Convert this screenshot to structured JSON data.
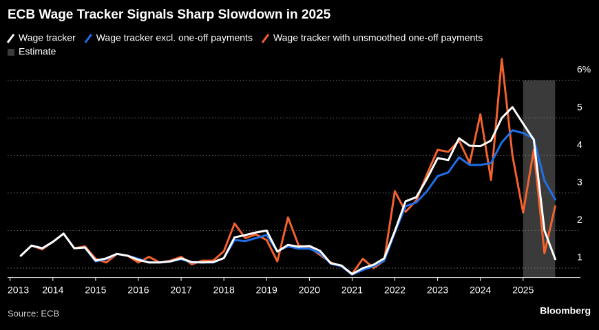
{
  "chart_data": {
    "type": "line",
    "title": "ECB Wage Tracker Signals Sharp Slowdown in 2025",
    "source": "Source: ECB",
    "brand": "Bloomberg",
    "x": [
      2013.25,
      2013.5,
      2013.75,
      2014,
      2014.25,
      2014.5,
      2014.75,
      2015,
      2015.25,
      2015.5,
      2015.75,
      2016,
      2016.25,
      2016.5,
      2016.75,
      2017,
      2017.25,
      2017.5,
      2017.75,
      2018,
      2018.25,
      2018.5,
      2018.75,
      2019,
      2019.25,
      2019.5,
      2019.75,
      2020,
      2020.25,
      2020.5,
      2020.75,
      2021,
      2021.25,
      2021.5,
      2021.75,
      2022,
      2022.25,
      2022.5,
      2022.75,
      2023,
      2023.25,
      2023.5,
      2023.75,
      2024,
      2024.25,
      2024.5,
      2024.75,
      2025,
      2025.25,
      2025.5,
      2025.75
    ],
    "series": [
      {
        "name": "Wage tracker",
        "color": "#ffffff",
        "values": [
          1.33,
          1.6,
          1.53,
          1.7,
          1.92,
          1.53,
          1.55,
          1.2,
          1.26,
          1.38,
          1.33,
          1.22,
          1.15,
          1.15,
          1.18,
          1.26,
          1.16,
          1.15,
          1.16,
          1.27,
          1.82,
          1.88,
          1.95,
          2.0,
          1.44,
          1.62,
          1.57,
          1.59,
          1.46,
          1.13,
          1.07,
          0.84,
          1.0,
          1.09,
          1.26,
          1.99,
          2.78,
          2.89,
          3.38,
          3.93,
          3.88,
          4.46,
          4.26,
          4.25,
          4.4,
          5.0,
          5.29,
          4.85,
          4.42,
          2.0,
          1.24
        ]
      },
      {
        "name": "Wage tracker excl. one-off payments",
        "color": "#1f6fe8",
        "values": [
          1.33,
          1.6,
          1.53,
          1.7,
          1.92,
          1.53,
          1.55,
          1.18,
          1.24,
          1.38,
          1.33,
          1.25,
          1.15,
          1.15,
          1.18,
          1.24,
          1.15,
          1.15,
          1.15,
          1.27,
          1.75,
          1.72,
          1.8,
          1.88,
          1.45,
          1.58,
          1.52,
          1.52,
          1.4,
          1.12,
          1.05,
          0.83,
          0.95,
          1.05,
          1.2,
          1.95,
          2.65,
          2.75,
          3.05,
          3.45,
          3.55,
          3.95,
          3.75,
          3.75,
          3.8,
          4.35,
          4.67,
          4.6,
          4.45,
          3.33,
          2.83
        ]
      },
      {
        "name": "Wage tracker with unsmoothed one-off payments",
        "color": "#f2622e",
        "values": [
          1.33,
          1.6,
          1.5,
          1.7,
          1.92,
          1.53,
          1.58,
          1.25,
          1.15,
          1.38,
          1.33,
          1.15,
          1.3,
          1.15,
          1.2,
          1.3,
          1.1,
          1.2,
          1.2,
          1.45,
          2.19,
          1.8,
          1.9,
          1.75,
          1.18,
          2.35,
          1.6,
          1.55,
          1.35,
          1.15,
          1.05,
          0.85,
          1.25,
          1.0,
          1.2,
          3.05,
          2.5,
          2.8,
          3.5,
          4.15,
          4.1,
          4.4,
          3.8,
          5.1,
          3.35,
          6.57,
          4.0,
          2.48,
          4.15,
          1.4,
          2.65
        ]
      }
    ],
    "shaded_region": {
      "name": "Estimate",
      "x": [
        2025,
        2025.75
      ],
      "color": "#3a3a3a"
    },
    "xlim": [
      2012.94,
      2026.34
    ],
    "xticks": [
      2013,
      2014,
      2015,
      2016,
      2017,
      2018,
      2019,
      2020,
      2021,
      2022,
      2023,
      2024,
      2025
    ],
    "ylim": [
      0.75,
      6.7
    ],
    "yticks": [
      1,
      2,
      3,
      4,
      5,
      {
        "value": 6,
        "label": "6%"
      }
    ],
    "grid": true
  }
}
